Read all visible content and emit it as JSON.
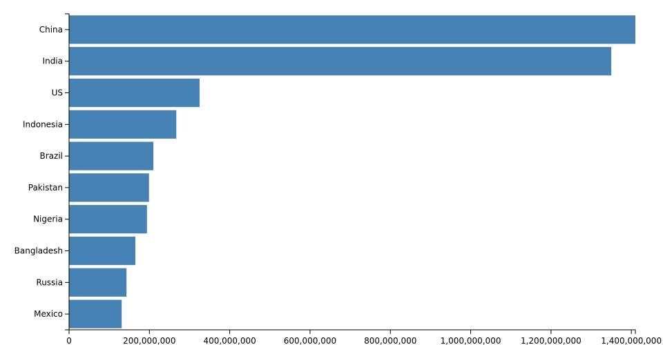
{
  "chart_data": {
    "type": "bar",
    "orientation": "horizontal",
    "color": "#4682b4",
    "categories": [
      "China",
      "India",
      "US",
      "Indonesia",
      "Brazil",
      "Pakistan",
      "Nigeria",
      "Bangladesh",
      "Russia",
      "Mexico"
    ],
    "values": [
      1410000000,
      1350000000,
      325000000,
      267000000,
      210000000,
      199000000,
      194000000,
      165000000,
      143000000,
      131000000
    ],
    "xlim": [
      0,
      1410000000
    ],
    "xticks": [
      0,
      {
        "value": 200000000,
        "label": "200,000,000"
      },
      {
        "value": 400000000,
        "label": "400,000,000"
      },
      {
        "value": 600000000,
        "label": "600,000,000"
      },
      {
        "value": 800000000,
        "label": "800,000,000"
      },
      {
        "value": 1000000000,
        "label": "1,000,000,000"
      },
      {
        "value": 1200000000,
        "label": "1,200,000,000"
      },
      {
        "value": 1400000000,
        "label": "1,400,000,000"
      }
    ]
  }
}
